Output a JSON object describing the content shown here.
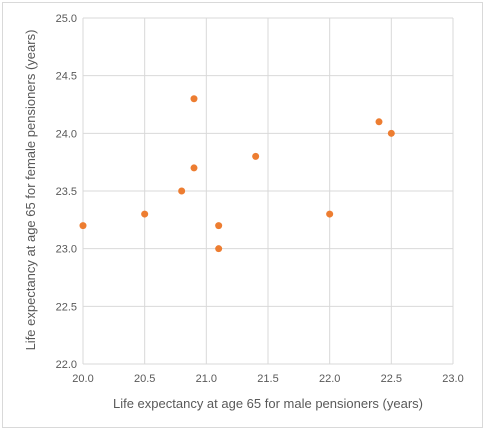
{
  "chart_data": {
    "type": "scatter",
    "title": "",
    "xlabel": "Life expectancy at age 65 for male pensioners (years)",
    "ylabel": "Life expectancy at age 65 for female pensioners (years)",
    "xlim": [
      20.0,
      23.0
    ],
    "ylim": [
      22.0,
      25.0
    ],
    "x_ticks": [
      "20.0",
      "20.5",
      "21.0",
      "21.5",
      "22.0",
      "22.5",
      "23.0"
    ],
    "y_ticks": [
      "22.0",
      "22.5",
      "23.0",
      "23.5",
      "24.0",
      "24.5",
      "25.0"
    ],
    "grid": true,
    "legend": "none",
    "marker_color": "#ED7D31",
    "grid_color": "#D9D9D9",
    "series": [
      {
        "points": [
          {
            "x": 20.0,
            "y": 23.2
          },
          {
            "x": 20.5,
            "y": 23.3
          },
          {
            "x": 20.8,
            "y": 23.5
          },
          {
            "x": 20.9,
            "y": 23.7
          },
          {
            "x": 20.9,
            "y": 24.3
          },
          {
            "x": 21.1,
            "y": 23.2
          },
          {
            "x": 21.1,
            "y": 23.0
          },
          {
            "x": 21.4,
            "y": 23.8
          },
          {
            "x": 22.0,
            "y": 23.3
          },
          {
            "x": 22.4,
            "y": 24.1
          },
          {
            "x": 22.5,
            "y": 24.0
          }
        ]
      }
    ]
  }
}
